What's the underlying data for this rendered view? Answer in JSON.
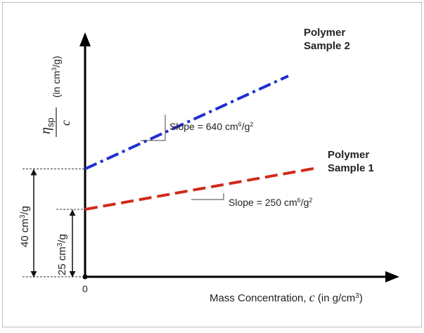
{
  "chart_data": {
    "type": "line",
    "xlabel": {
      "text": "Mass Concentration, ",
      "var": "c",
      "unit_pre": " (in g/cm",
      "unit_sup": "3",
      "unit_post": ")"
    },
    "ylabel": {
      "num_var": "η",
      "num_sub": "sp",
      "den_var": "c",
      "unit_pre": "(in cm",
      "unit_sup": "3",
      "unit_post": "/g)"
    },
    "origin_label": "0",
    "series": [
      {
        "name_line1": "Polymer",
        "name_line2": "Sample 2",
        "intercept": 40,
        "slope": 640,
        "color": "#1f2fd0",
        "style": "dash-dot",
        "slope_label_pre": "Slope = 640 cm",
        "slope_label_sup1": "6",
        "slope_label_mid": "/g",
        "slope_label_sup2": "2"
      },
      {
        "name_line1": "Polymer",
        "name_line2": "Sample 1",
        "intercept": 25,
        "slope": 250,
        "color": "#d02a1a",
        "style": "dashed",
        "slope_label_pre": "Slope = 250 cm",
        "slope_label_sup1": "6",
        "slope_label_mid": "/g",
        "slope_label_sup2": "2"
      }
    ],
    "annotations": [
      {
        "value": 40,
        "pre": "40 cm",
        "sup": "3",
        "post": "/g"
      },
      {
        "value": 25,
        "pre": "25 cm",
        "sup": "3",
        "post": "/g"
      }
    ],
    "grid": false,
    "legend": "none (direct labels)"
  }
}
